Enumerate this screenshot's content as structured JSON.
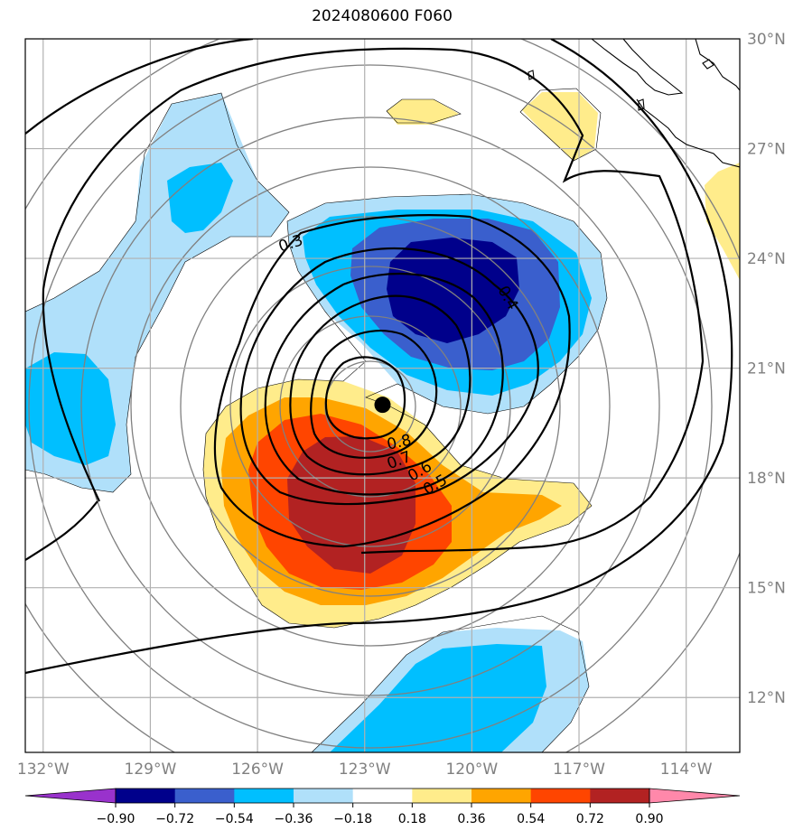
{
  "chart_data": {
    "type": "heatmap",
    "title": "2024080600 F060",
    "xlabel": "",
    "ylabel": "",
    "xlim": [
      -132.5,
      -112.5
    ],
    "ylim": [
      10.5,
      30.0
    ],
    "lon_ticks": [
      -132,
      -129,
      -126,
      -123,
      -120,
      -117,
      -114
    ],
    "lon_tick_labels": [
      "132°W",
      "129°W",
      "126°W",
      "123°W",
      "120°W",
      "117°W",
      "114°W"
    ],
    "lat_ticks": [
      12,
      15,
      18,
      21,
      24,
      27,
      30
    ],
    "lat_tick_labels": [
      "12°N",
      "15°N",
      "18°N",
      "21°N",
      "24°N",
      "27°N",
      "30°N"
    ],
    "grid": true,
    "grid_color": "#b0b0b0",
    "center_marker": {
      "lon": -122.5,
      "lat": 20.0
    },
    "colorbar": {
      "levels": [
        -0.9,
        -0.72,
        -0.54,
        -0.36,
        -0.18,
        0.18,
        0.36,
        0.54,
        0.72,
        0.9
      ],
      "labels": [
        "−0.90",
        "−0.72",
        "−0.54",
        "−0.36",
        "−0.18",
        "0.18",
        "0.36",
        "0.54",
        "0.72",
        "0.90"
      ],
      "colors": [
        "#9932cc",
        "#00008b",
        "#3a5fcd",
        "#00bfff",
        "#b0e0fa",
        "#ffffff",
        "#ffec8b",
        "#ffa500",
        "#ff4500",
        "#b22222",
        "#ff88aa"
      ],
      "extend": "both"
    },
    "contour_levels": [
      {
        "value": 0.3,
        "label": "0.3"
      },
      {
        "value": 0.4,
        "label": "0.4"
      },
      {
        "value": 0.5,
        "label": "0.5"
      },
      {
        "value": 0.6,
        "label": "0.6"
      },
      {
        "value": 0.7,
        "label": "0.7"
      },
      {
        "value": 0.8,
        "label": "0.8"
      }
    ],
    "shaded_features": [
      {
        "sign": "negative",
        "center": [
          -121.0,
          22.5
        ],
        "peak": -0.9
      },
      {
        "sign": "positive",
        "center": [
          -123.3,
          17.3
        ],
        "peak": 0.9
      },
      {
        "sign": "negative",
        "center": [
          -131.5,
          19.8
        ],
        "peak": -0.36
      },
      {
        "sign": "negative",
        "center": [
          -127.5,
          25.2
        ],
        "peak": -0.36
      },
      {
        "sign": "negative",
        "center": [
          -119.5,
          12.2
        ],
        "peak": -0.36
      },
      {
        "sign": "positive",
        "center": [
          -120.5,
          27.0
        ],
        "peak": 0.36
      },
      {
        "sign": "positive",
        "center": [
          -113.0,
          25.0
        ],
        "peak": 0.36
      }
    ]
  }
}
